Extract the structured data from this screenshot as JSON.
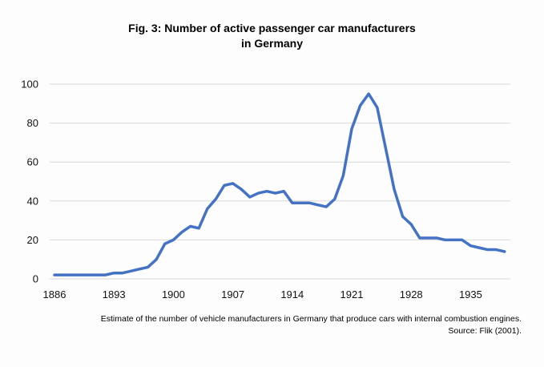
{
  "chart_data": {
    "type": "line",
    "title_line1": "Fig. 3: Number of active passenger car manufacturers",
    "title_line2": "in Germany",
    "xlabel": "",
    "ylabel": "",
    "ylim": [
      0,
      100
    ],
    "yticks": [
      "0",
      "20",
      "40",
      "60",
      "80",
      "100"
    ],
    "xtick_labels": [
      "1886",
      "1893",
      "1900",
      "1907",
      "1914",
      "1921",
      "1928",
      "1935"
    ],
    "grid": true,
    "legend": "none",
    "line_color": "#4472C4",
    "x": [
      1886,
      1887,
      1888,
      1889,
      1890,
      1891,
      1892,
      1893,
      1894,
      1895,
      1896,
      1897,
      1898,
      1899,
      1900,
      1901,
      1902,
      1903,
      1904,
      1905,
      1906,
      1907,
      1908,
      1909,
      1910,
      1911,
      1912,
      1913,
      1914,
      1915,
      1916,
      1917,
      1918,
      1919,
      1920,
      1921,
      1922,
      1923,
      1924,
      1925,
      1926,
      1927,
      1928,
      1929,
      1930,
      1931,
      1932,
      1933,
      1934,
      1935,
      1936,
      1937,
      1938,
      1939
    ],
    "values": [
      2,
      2,
      2,
      2,
      2,
      2,
      2,
      3,
      3,
      4,
      5,
      6,
      10,
      18,
      20,
      24,
      27,
      26,
      36,
      41,
      48,
      49,
      46,
      42,
      44,
      45,
      44,
      45,
      39,
      39,
      39,
      38,
      37,
      41,
      53,
      77,
      89,
      95,
      88,
      67,
      46,
      32,
      28,
      21,
      21,
      21,
      20,
      20,
      20,
      17,
      16,
      15,
      15,
      14
    ]
  },
  "notes": {
    "line1": "Estimate of the number of vehicle manufacturers in Germany that produce cars with internal combustion engines.",
    "line2": "Source: Flik (2001)."
  }
}
